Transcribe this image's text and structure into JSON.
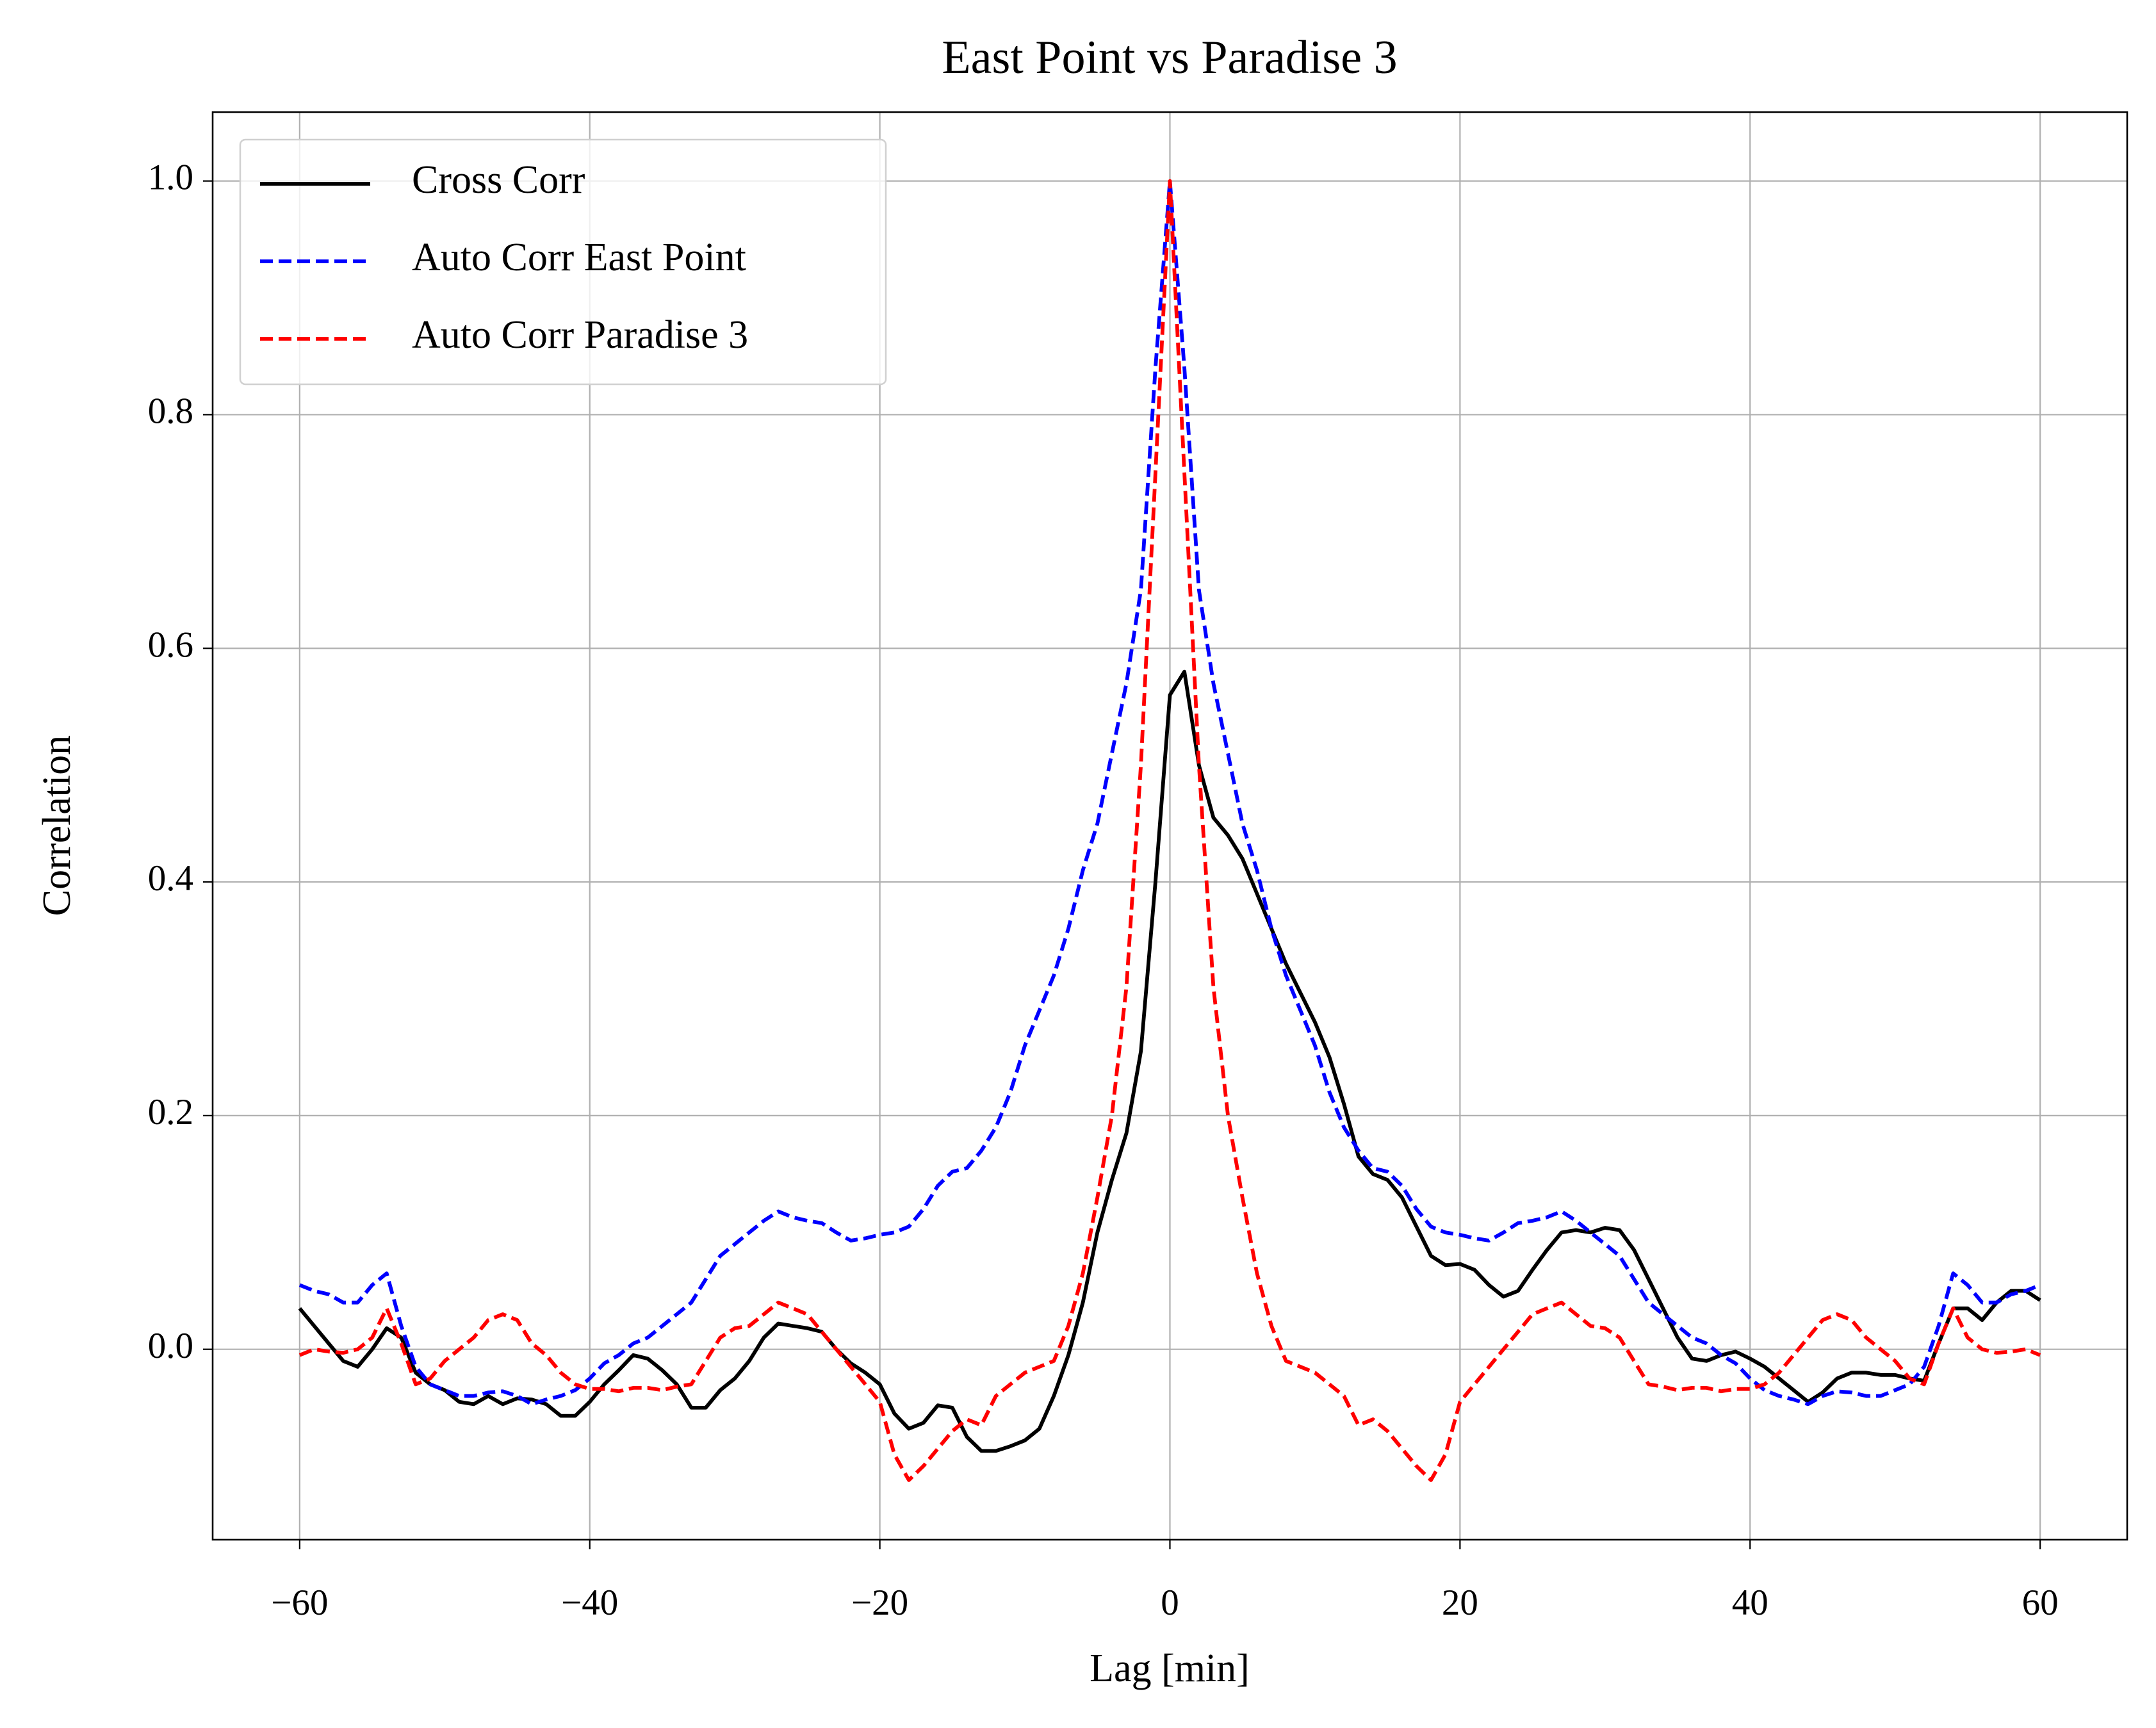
{
  "chart_data": {
    "type": "line",
    "title": "East Point vs Paradise 3",
    "xlabel": "Lag [min]",
    "ylabel": "Correlation",
    "x": [
      -60,
      -59,
      -58,
      -57,
      -56,
      -55,
      -54,
      -53,
      -52,
      -51,
      -50,
      -49,
      -48,
      -47,
      -46,
      -45,
      -44,
      -43,
      -42,
      -41,
      -40,
      -39,
      -38,
      -37,
      -36,
      -35,
      -34,
      -33,
      -32,
      -31,
      -30,
      -29,
      -28,
      -27,
      -26,
      -25,
      -24,
      -23,
      -22,
      -21,
      -20,
      -19,
      -18,
      -17,
      -16,
      -15,
      -14,
      -13,
      -12,
      -11,
      -10,
      -9,
      -8,
      -7,
      -6,
      -5,
      -4,
      -3,
      -2,
      -1,
      0,
      1,
      2,
      3,
      4,
      5,
      6,
      7,
      8,
      9,
      10,
      11,
      12,
      13,
      14,
      15,
      16,
      17,
      18,
      19,
      20,
      21,
      22,
      23,
      24,
      25,
      26,
      27,
      28,
      29,
      30,
      31,
      32,
      33,
      34,
      35,
      36,
      37,
      38,
      39,
      40,
      41,
      42,
      43,
      44,
      45,
      46,
      47,
      48,
      49,
      50,
      51,
      52,
      53,
      54,
      55,
      56,
      57,
      58,
      59,
      60
    ],
    "series": [
      {
        "name": "Cross Corr",
        "color": "#000000",
        "linestyle": "solid",
        "values": [
          0.035,
          0.02,
          0.005,
          -0.01,
          -0.015,
          0.0,
          0.018,
          0.01,
          -0.02,
          -0.03,
          -0.035,
          -0.045,
          -0.047,
          -0.04,
          -0.047,
          -0.042,
          -0.043,
          -0.047,
          -0.057,
          -0.057,
          -0.045,
          -0.03,
          -0.018,
          -0.005,
          -0.008,
          -0.018,
          -0.03,
          -0.05,
          -0.05,
          -0.035,
          -0.025,
          -0.01,
          0.01,
          0.022,
          0.02,
          0.018,
          0.015,
          0.0,
          -0.012,
          -0.02,
          -0.03,
          -0.055,
          -0.068,
          -0.063,
          -0.048,
          -0.05,
          -0.075,
          -0.087,
          -0.087,
          -0.083,
          -0.078,
          -0.068,
          -0.04,
          -0.005,
          0.04,
          0.1,
          0.145,
          0.185,
          0.255,
          0.4,
          0.56,
          0.58,
          0.5,
          0.455,
          0.44,
          0.42,
          0.39,
          0.36,
          0.33,
          0.305,
          0.28,
          0.25,
          0.21,
          0.165,
          0.15,
          0.145,
          0.13,
          0.105,
          0.08,
          0.072,
          0.073,
          0.068,
          0.055,
          0.045,
          0.05,
          0.068,
          0.085,
          0.1,
          0.102,
          0.1,
          0.104,
          0.102,
          0.085,
          0.06,
          0.035,
          0.01,
          -0.008,
          -0.01,
          -0.005,
          -0.002,
          -0.008,
          -0.015,
          -0.025,
          -0.035,
          -0.045,
          -0.037,
          -0.025,
          -0.02,
          -0.02,
          -0.022,
          -0.022,
          -0.025,
          -0.027,
          0.005,
          0.035,
          0.035,
          0.025,
          0.04,
          0.05,
          0.05,
          0.042
        ]
      },
      {
        "name": "Auto Corr East Point",
        "color": "#0000ff",
        "linestyle": "dashed",
        "values": [
          0.055,
          0.05,
          0.047,
          0.04,
          0.04,
          0.055,
          0.065,
          0.02,
          -0.015,
          -0.03,
          -0.035,
          -0.04,
          -0.04,
          -0.037,
          -0.036,
          -0.04,
          -0.047,
          -0.043,
          -0.04,
          -0.035,
          -0.025,
          -0.012,
          -0.005,
          0.005,
          0.01,
          0.02,
          0.03,
          0.04,
          0.06,
          0.08,
          0.09,
          0.1,
          0.11,
          0.118,
          0.113,
          0.11,
          0.108,
          0.1,
          0.093,
          0.095,
          0.098,
          0.1,
          0.105,
          0.12,
          0.14,
          0.152,
          0.155,
          0.17,
          0.19,
          0.22,
          0.26,
          0.29,
          0.32,
          0.36,
          0.41,
          0.45,
          0.51,
          0.57,
          0.65,
          0.84,
          1.0,
          0.84,
          0.65,
          0.57,
          0.51,
          0.45,
          0.41,
          0.36,
          0.32,
          0.29,
          0.26,
          0.22,
          0.19,
          0.17,
          0.155,
          0.152,
          0.14,
          0.12,
          0.105,
          0.1,
          0.098,
          0.095,
          0.093,
          0.1,
          0.108,
          0.11,
          0.113,
          0.118,
          0.11,
          0.1,
          0.09,
          0.08,
          0.06,
          0.04,
          0.03,
          0.02,
          0.01,
          0.005,
          -0.005,
          -0.012,
          -0.025,
          -0.035,
          -0.04,
          -0.043,
          -0.047,
          -0.04,
          -0.036,
          -0.037,
          -0.04,
          -0.04,
          -0.035,
          -0.03,
          -0.015,
          0.02,
          0.065,
          0.055,
          0.04,
          0.04,
          0.047,
          0.05,
          0.055
        ]
      },
      {
        "name": "Auto Corr Paradise 3",
        "color": "#ff0000",
        "linestyle": "dashed",
        "values": [
          -0.005,
          0.0,
          -0.002,
          -0.003,
          0.0,
          0.01,
          0.035,
          0.005,
          -0.03,
          -0.025,
          -0.01,
          0.0,
          0.01,
          0.025,
          0.03,
          0.025,
          0.005,
          -0.005,
          -0.02,
          -0.03,
          -0.034,
          -0.034,
          -0.036,
          -0.033,
          -0.033,
          -0.035,
          -0.032,
          -0.03,
          -0.01,
          0.01,
          0.018,
          0.02,
          0.03,
          0.04,
          0.035,
          0.03,
          0.015,
          0.0,
          -0.015,
          -0.03,
          -0.045,
          -0.09,
          -0.112,
          -0.1,
          -0.085,
          -0.07,
          -0.06,
          -0.065,
          -0.04,
          -0.03,
          -0.02,
          -0.015,
          -0.01,
          0.02,
          0.065,
          0.13,
          0.2,
          0.31,
          0.5,
          0.75,
          1.0,
          0.75,
          0.5,
          0.31,
          0.2,
          0.13,
          0.065,
          0.02,
          -0.01,
          -0.015,
          -0.02,
          -0.03,
          -0.04,
          -0.065,
          -0.06,
          -0.07,
          -0.085,
          -0.1,
          -0.112,
          -0.09,
          -0.045,
          -0.03,
          -0.015,
          0.0,
          0.015,
          0.03,
          0.035,
          0.04,
          0.03,
          0.02,
          0.018,
          0.01,
          -0.01,
          -0.03,
          -0.032,
          -0.035,
          -0.033,
          -0.033,
          -0.036,
          -0.034,
          -0.034,
          -0.03,
          -0.02,
          -0.005,
          0.01,
          0.025,
          0.03,
          0.025,
          0.01,
          0.0,
          -0.01,
          -0.025,
          -0.03,
          0.005,
          0.035,
          0.01,
          0.0,
          -0.003,
          -0.002,
          0.0,
          -0.005
        ]
      }
    ],
    "xlim": [
      -66,
      66
    ],
    "ylim": [
      -0.163,
      1.059
    ],
    "xticks": [
      {
        "value": -60,
        "label": "−60"
      },
      {
        "value": -40,
        "label": "−40"
      },
      {
        "value": -20,
        "label": "−20"
      },
      0,
      20,
      40,
      60
    ],
    "yticks": [
      {
        "value": 0,
        "label": "0.0"
      },
      0.2,
      0.4,
      0.6,
      0.8,
      {
        "value": 1,
        "label": "1.0"
      }
    ],
    "grid": true,
    "legend": "upper left"
  }
}
